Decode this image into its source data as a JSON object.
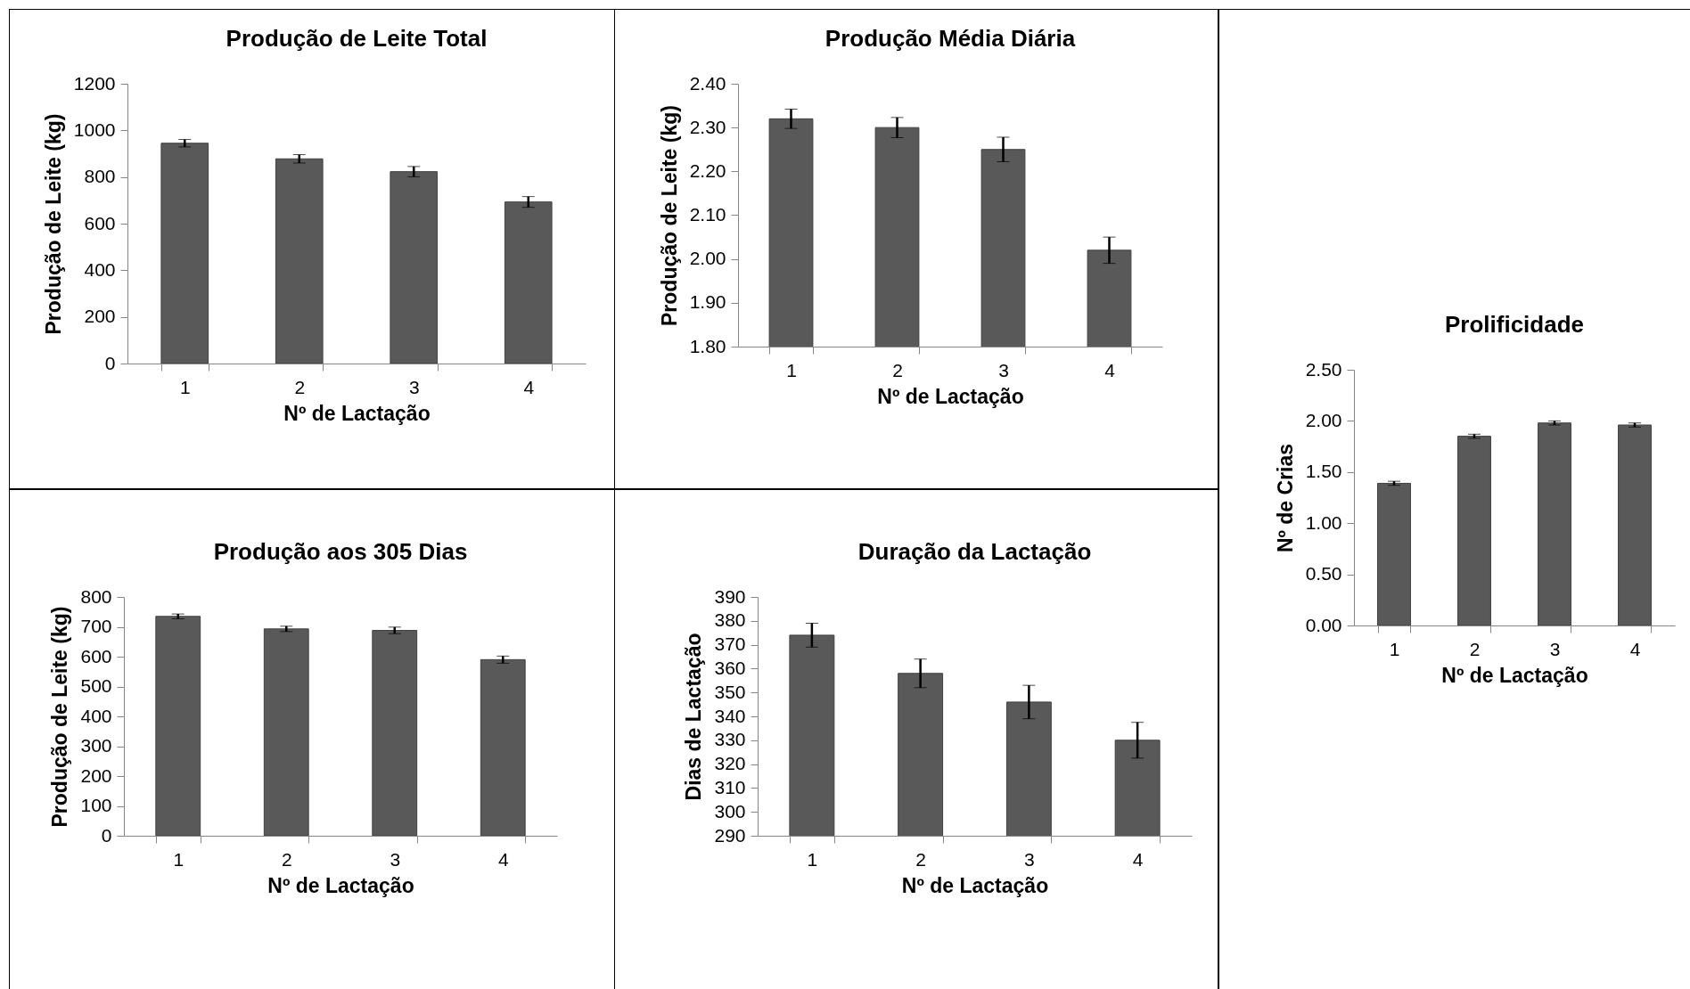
{
  "chart_data": [
    {
      "type": "bar",
      "title": "Produção de Leite Total",
      "xlabel": "Nº de Lactação",
      "ylabel": "Produção de Leite (kg)",
      "categories": [
        "1",
        "2",
        "3",
        "4"
      ],
      "values": [
        945,
        878,
        823,
        693
      ],
      "errors": [
        16,
        18,
        22,
        23
      ],
      "color": "#595959",
      "ylim": [
        0,
        1200
      ],
      "yticks": [
        0,
        200,
        400,
        600,
        800,
        1000,
        1200
      ]
    },
    {
      "type": "bar",
      "title": "Produção Média Diária",
      "xlabel": "Nº de Lactação",
      "ylabel": "Produção de Leite (kg)",
      "categories": [
        "1",
        "2",
        "3",
        "4"
      ],
      "values": [
        2.32,
        2.3,
        2.25,
        2.02
      ],
      "errors": [
        0.022,
        0.023,
        0.028,
        0.03
      ],
      "color": "#595959",
      "ylim": [
        1.8,
        2.4
      ],
      "yticks": [
        {
          "value": 1.8,
          "label": "1.80"
        },
        {
          "value": 1.9,
          "label": "1.90"
        },
        {
          "value": 2,
          "label": "2.00"
        },
        {
          "value": 2.1,
          "label": "2.10"
        },
        {
          "value": 2.2,
          "label": "2.20"
        },
        {
          "value": 2.3,
          "label": "2.30"
        },
        {
          "value": 2.4,
          "label": "2.40"
        }
      ]
    },
    {
      "type": "bar",
      "title": "Prolificidade",
      "xlabel": "Nº de Lactação",
      "ylabel": "Nº de Crias",
      "categories": [
        "1",
        "2",
        "3",
        "4"
      ],
      "values": [
        1.39,
        1.85,
        1.98,
        1.96
      ],
      "errors": [
        0.02,
        0.02,
        0.02,
        0.02
      ],
      "color": "#595959",
      "ylim": [
        0,
        2.5
      ],
      "yticks": [
        {
          "value": 0,
          "label": "0.00"
        },
        {
          "value": 0.5,
          "label": "0.50"
        },
        {
          "value": 1,
          "label": "1.00"
        },
        {
          "value": 1.5,
          "label": "1.50"
        },
        {
          "value": 2,
          "label": "2.00"
        },
        {
          "value": 2.5,
          "label": "2.50"
        }
      ]
    },
    {
      "type": "bar",
      "title": "Produção aos 305 Dias",
      "xlabel": "Nº de Lactação",
      "ylabel": "Produção de Leite (kg)",
      "categories": [
        "1",
        "2",
        "3",
        "4"
      ],
      "values": [
        735,
        693,
        688,
        590
      ],
      "errors": [
        8,
        9,
        11,
        12
      ],
      "color": "#595959",
      "ylim": [
        0,
        800
      ],
      "yticks": [
        0,
        100,
        200,
        300,
        400,
        500,
        600,
        700,
        800
      ]
    },
    {
      "type": "bar",
      "title": "Duração da Lactação",
      "xlabel": "Nº de Lactação",
      "ylabel": "Dias de Lactação",
      "categories": [
        "1",
        "2",
        "3",
        "4"
      ],
      "values": [
        374,
        358,
        346,
        330
      ],
      "errors": [
        5,
        6,
        7,
        7.5
      ],
      "color": "#595959",
      "ylim": [
        290,
        390
      ],
      "yticks": [
        290,
        300,
        310,
        320,
        330,
        340,
        350,
        360,
        370,
        380,
        390
      ]
    }
  ]
}
